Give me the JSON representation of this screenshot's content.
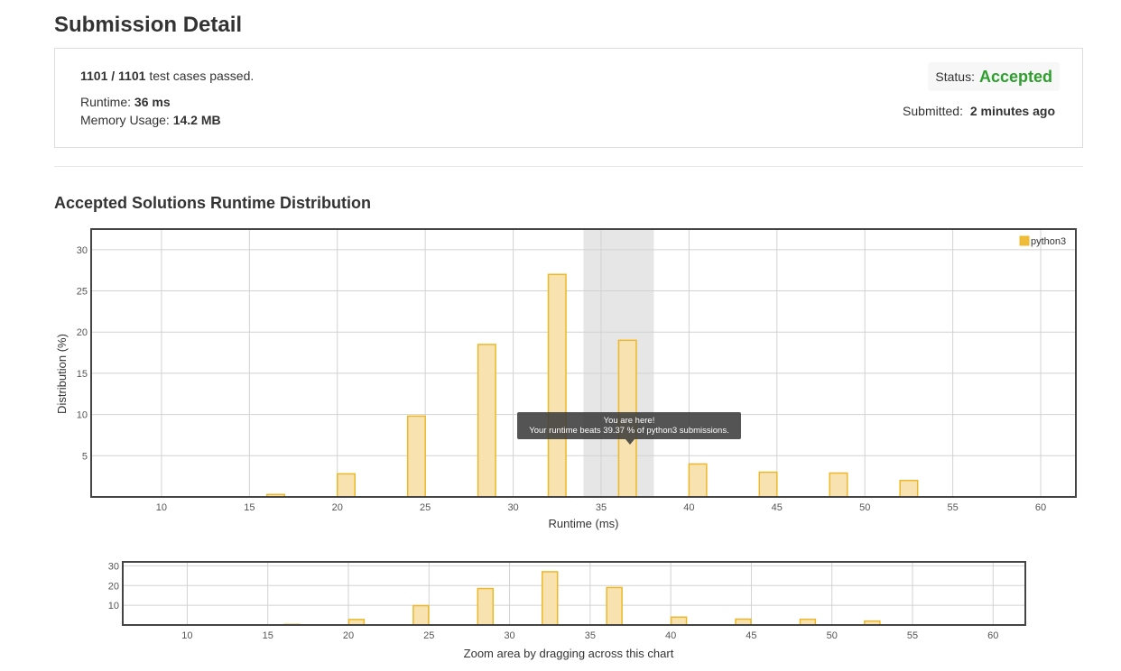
{
  "page": {
    "title": "Submission Detail"
  },
  "summary": {
    "cases_passed_value": "1101 / 1101",
    "cases_passed_suffix": "test cases passed.",
    "runtime_label": "Runtime:",
    "runtime_value": "36 ms",
    "memory_label": "Memory Usage:",
    "memory_value": "14.2 MB",
    "status_label": "Status:",
    "status_value": "Accepted",
    "submitted_label": "Submitted:",
    "submitted_value": "2 minutes ago"
  },
  "section": {
    "title": "Accepted Solutions Runtime Distribution"
  },
  "colors": {
    "bar_fill": "#f8e3b0",
    "bar_stroke": "#ecb829",
    "highlight_fill": "#e6e6e6",
    "grid": "#d2d2d2",
    "accepted": "#2d9f2d",
    "tooltip_bg": "#3c3c3c"
  },
  "tooltip": {
    "line1": "You are here!",
    "line2": "Your runtime beats 39.37 % of python3 submissions."
  },
  "chart_data": [
    {
      "type": "bar",
      "xlabel": "Runtime (ms)",
      "ylabel": "Distribution (%)",
      "xlim": [
        6,
        62
      ],
      "ylim": [
        0,
        32.5
      ],
      "x_ticks": [
        10,
        15,
        20,
        25,
        30,
        35,
        40,
        45,
        50,
        55,
        60
      ],
      "y_ticks": [
        5,
        10,
        15,
        20,
        25,
        30
      ],
      "grid": true,
      "legend_position": "top-right",
      "highlight_range": [
        34,
        38
      ],
      "series": [
        {
          "name": "python3",
          "x": [
            16.5,
            20.5,
            24.5,
            28.5,
            32.5,
            36.5,
            40.5,
            44.5,
            48.5,
            52.5
          ],
          "values": [
            0.3,
            2.8,
            9.8,
            18.5,
            27.0,
            19.0,
            4.0,
            3.0,
            2.9,
            2.0
          ]
        }
      ]
    },
    {
      "type": "bar",
      "xlabel": "Zoom area by dragging across this chart",
      "xlim": [
        6,
        62
      ],
      "ylim": [
        0,
        32
      ],
      "x_ticks": [
        10,
        15,
        20,
        25,
        30,
        35,
        40,
        45,
        50,
        55,
        60
      ],
      "y_ticks": [
        10,
        20,
        30
      ],
      "grid": true,
      "series": [
        {
          "x": [
            16.5,
            20.5,
            24.5,
            28.5,
            32.5,
            36.5,
            40.5,
            44.5,
            48.5,
            52.5
          ],
          "values": [
            0.3,
            2.8,
            9.8,
            18.5,
            27.0,
            19.0,
            4.0,
            3.0,
            2.9,
            2.0
          ]
        }
      ]
    }
  ]
}
